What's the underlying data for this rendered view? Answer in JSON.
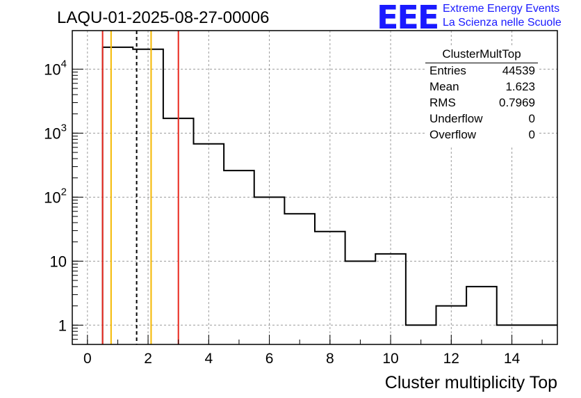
{
  "header": {
    "run_title": "LAQU-01-2025-08-27-00006",
    "logo_text": "EEE",
    "logo_line1": "Extreme Energy Events",
    "logo_line2": "La Scienza nelle Scuole"
  },
  "stats_box": {
    "name": "ClusterMultTop",
    "rows": [
      {
        "label": "Entries",
        "value": "44539"
      },
      {
        "label": "Mean",
        "value": "1.623"
      },
      {
        "label": "RMS",
        "value": "0.7969"
      },
      {
        "label": "Underflow",
        "value": "0"
      },
      {
        "label": "Overflow",
        "value": "0"
      }
    ]
  },
  "chart_data": {
    "type": "bar",
    "style": "step-histogram",
    "title": "LAQU-01-2025-08-27-00006",
    "xlabel": "Cluster multiplicity Top",
    "ylabel": "",
    "xlim": [
      -0.5,
      15.5
    ],
    "ylim": [
      0.5,
      40000
    ],
    "yscale": "log",
    "grid": true,
    "bin_edges": [
      0.5,
      1.5,
      2.5,
      3.5,
      4.5,
      5.5,
      6.5,
      7.5,
      8.5,
      9.5,
      10.5,
      11.5,
      12.5,
      13.5,
      15.5
    ],
    "values": [
      22000,
      20500,
      1700,
      680,
      260,
      100,
      55,
      29,
      10,
      13,
      1,
      2,
      4,
      1
    ],
    "x_ticks": [
      {
        "value": 0,
        "label": "0"
      },
      {
        "value": 2,
        "label": "2"
      },
      {
        "value": 4,
        "label": "4"
      },
      {
        "value": 6,
        "label": "6"
      },
      {
        "value": 8,
        "label": "8"
      },
      {
        "value": 10,
        "label": "10"
      },
      {
        "value": 12,
        "label": "12"
      },
      {
        "value": 14,
        "label": "14"
      }
    ],
    "y_ticks": [
      {
        "value": 1,
        "base": "1",
        "exp": ""
      },
      {
        "value": 10,
        "base": "10",
        "exp": ""
      },
      {
        "value": 100,
        "base": "10",
        "exp": "2"
      },
      {
        "value": 1000,
        "base": "10",
        "exp": "3"
      },
      {
        "value": 10000,
        "base": "10",
        "exp": "4"
      }
    ],
    "vertical_lines": [
      {
        "name": "red-line-left",
        "x": 0.5,
        "color": "#e8261c",
        "dashed": false
      },
      {
        "name": "orange-line-left",
        "x": 0.78,
        "color": "#f5b800",
        "dashed": false
      },
      {
        "name": "mean-dashed-line",
        "x": 1.623,
        "color": "#000000",
        "dashed": true
      },
      {
        "name": "orange-line-right",
        "x": 2.1,
        "color": "#f5b800",
        "dashed": false
      },
      {
        "name": "red-line-right",
        "x": 3.0,
        "color": "#e8261c",
        "dashed": false
      }
    ],
    "histogram_color": "#000000"
  }
}
